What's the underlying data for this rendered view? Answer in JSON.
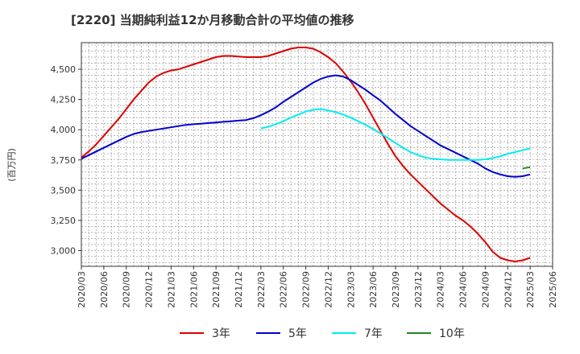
{
  "chart_data": {
    "type": "line",
    "title": "[2220]  当期純利益12か月移動合計の平均値の推移",
    "ylabel": "(百万円)",
    "xlabel": "",
    "ylim": [
      2870,
      4720
    ],
    "yticks": [
      3000,
      3250,
      3500,
      3750,
      4000,
      4250,
      4500
    ],
    "ytick_labels": [
      "3,000",
      "3,250",
      "3,500",
      "3,750",
      "4,000",
      "4,250",
      "4,500"
    ],
    "xlim": [
      "2020-03",
      "2025-06"
    ],
    "xtick_labels": [
      "2020/03",
      "2020/06",
      "2020/09",
      "2020/12",
      "2021/03",
      "2021/06",
      "2021/09",
      "2021/12",
      "2022/03",
      "2022/06",
      "2022/09",
      "2022/12",
      "2023/03",
      "2023/06",
      "2023/09",
      "2023/12",
      "2024/03",
      "2024/06",
      "2024/09",
      "2024/12",
      "2025/03",
      "2025/06"
    ],
    "grid": true,
    "legend_position": "bottom",
    "series": [
      {
        "name": "3年",
        "color": "#dd0000",
        "points": [
          [
            "2020-03",
            3770
          ],
          [
            "2020-04",
            3820
          ],
          [
            "2020-05",
            3880
          ],
          [
            "2020-06",
            3950
          ],
          [
            "2020-07",
            4020
          ],
          [
            "2020-08",
            4090
          ],
          [
            "2020-09",
            4170
          ],
          [
            "2020-10",
            4250
          ],
          [
            "2020-11",
            4320
          ],
          [
            "2020-12",
            4390
          ],
          [
            "2021-01",
            4440
          ],
          [
            "2021-02",
            4470
          ],
          [
            "2021-03",
            4490
          ],
          [
            "2021-04",
            4500
          ],
          [
            "2021-05",
            4520
          ],
          [
            "2021-06",
            4540
          ],
          [
            "2021-07",
            4560
          ],
          [
            "2021-08",
            4580
          ],
          [
            "2021-09",
            4600
          ],
          [
            "2021-10",
            4610
          ],
          [
            "2021-11",
            4610
          ],
          [
            "2021-12",
            4605
          ],
          [
            "2022-01",
            4600
          ],
          [
            "2022-02",
            4600
          ],
          [
            "2022-03",
            4600
          ],
          [
            "2022-04",
            4610
          ],
          [
            "2022-05",
            4630
          ],
          [
            "2022-06",
            4650
          ],
          [
            "2022-07",
            4670
          ],
          [
            "2022-08",
            4680
          ],
          [
            "2022-09",
            4680
          ],
          [
            "2022-10",
            4670
          ],
          [
            "2022-11",
            4640
          ],
          [
            "2022-12",
            4600
          ],
          [
            "2023-01",
            4550
          ],
          [
            "2023-02",
            4480
          ],
          [
            "2023-03",
            4400
          ],
          [
            "2023-04",
            4310
          ],
          [
            "2023-05",
            4210
          ],
          [
            "2023-06",
            4100
          ],
          [
            "2023-07",
            3990
          ],
          [
            "2023-08",
            3880
          ],
          [
            "2023-09",
            3780
          ],
          [
            "2023-10",
            3700
          ],
          [
            "2023-11",
            3630
          ],
          [
            "2023-12",
            3570
          ],
          [
            "2024-01",
            3510
          ],
          [
            "2024-02",
            3450
          ],
          [
            "2024-03",
            3390
          ],
          [
            "2024-04",
            3340
          ],
          [
            "2024-05",
            3290
          ],
          [
            "2024-06",
            3250
          ],
          [
            "2024-07",
            3200
          ],
          [
            "2024-08",
            3140
          ],
          [
            "2024-09",
            3070
          ],
          [
            "2024-10",
            2990
          ],
          [
            "2024-11",
            2940
          ],
          [
            "2024-12",
            2920
          ],
          [
            "2025-01",
            2910
          ],
          [
            "2025-02",
            2920
          ],
          [
            "2025-03",
            2940
          ]
        ]
      },
      {
        "name": "5年",
        "color": "#0000cc",
        "points": [
          [
            "2020-03",
            3760
          ],
          [
            "2020-04",
            3790
          ],
          [
            "2020-05",
            3820
          ],
          [
            "2020-06",
            3850
          ],
          [
            "2020-07",
            3880
          ],
          [
            "2020-08",
            3910
          ],
          [
            "2020-09",
            3940
          ],
          [
            "2020-10",
            3965
          ],
          [
            "2020-11",
            3980
          ],
          [
            "2020-12",
            3990
          ],
          [
            "2021-01",
            4000
          ],
          [
            "2021-02",
            4010
          ],
          [
            "2021-03",
            4020
          ],
          [
            "2021-04",
            4030
          ],
          [
            "2021-05",
            4040
          ],
          [
            "2021-06",
            4045
          ],
          [
            "2021-07",
            4050
          ],
          [
            "2021-08",
            4055
          ],
          [
            "2021-09",
            4060
          ],
          [
            "2021-10",
            4065
          ],
          [
            "2021-11",
            4070
          ],
          [
            "2021-12",
            4075
          ],
          [
            "2022-01",
            4080
          ],
          [
            "2022-02",
            4095
          ],
          [
            "2022-03",
            4120
          ],
          [
            "2022-04",
            4150
          ],
          [
            "2022-05",
            4185
          ],
          [
            "2022-06",
            4230
          ],
          [
            "2022-07",
            4270
          ],
          [
            "2022-08",
            4310
          ],
          [
            "2022-09",
            4350
          ],
          [
            "2022-10",
            4390
          ],
          [
            "2022-11",
            4420
          ],
          [
            "2022-12",
            4440
          ],
          [
            "2023-01",
            4450
          ],
          [
            "2023-02",
            4440
          ],
          [
            "2023-03",
            4410
          ],
          [
            "2023-04",
            4370
          ],
          [
            "2023-05",
            4330
          ],
          [
            "2023-06",
            4285
          ],
          [
            "2023-07",
            4240
          ],
          [
            "2023-08",
            4185
          ],
          [
            "2023-09",
            4130
          ],
          [
            "2023-10",
            4080
          ],
          [
            "2023-11",
            4030
          ],
          [
            "2023-12",
            3990
          ],
          [
            "2024-01",
            3950
          ],
          [
            "2024-02",
            3910
          ],
          [
            "2024-03",
            3870
          ],
          [
            "2024-04",
            3840
          ],
          [
            "2024-05",
            3810
          ],
          [
            "2024-06",
            3780
          ],
          [
            "2024-07",
            3750
          ],
          [
            "2024-08",
            3720
          ],
          [
            "2024-09",
            3680
          ],
          [
            "2024-10",
            3650
          ],
          [
            "2024-11",
            3630
          ],
          [
            "2024-12",
            3615
          ],
          [
            "2025-01",
            3610
          ],
          [
            "2025-02",
            3615
          ],
          [
            "2025-03",
            3630
          ]
        ]
      },
      {
        "name": "7年",
        "color": "#00eeee",
        "points": [
          [
            "2022-03",
            4010
          ],
          [
            "2022-04",
            4025
          ],
          [
            "2022-05",
            4045
          ],
          [
            "2022-06",
            4070
          ],
          [
            "2022-07",
            4100
          ],
          [
            "2022-08",
            4125
          ],
          [
            "2022-09",
            4150
          ],
          [
            "2022-10",
            4165
          ],
          [
            "2022-11",
            4170
          ],
          [
            "2022-12",
            4160
          ],
          [
            "2023-01",
            4145
          ],
          [
            "2023-02",
            4125
          ],
          [
            "2023-03",
            4100
          ],
          [
            "2023-04",
            4070
          ],
          [
            "2023-05",
            4040
          ],
          [
            "2023-06",
            4005
          ],
          [
            "2023-07",
            3970
          ],
          [
            "2023-08",
            3930
          ],
          [
            "2023-09",
            3890
          ],
          [
            "2023-10",
            3850
          ],
          [
            "2023-11",
            3815
          ],
          [
            "2023-12",
            3790
          ],
          [
            "2024-01",
            3770
          ],
          [
            "2024-02",
            3760
          ],
          [
            "2024-03",
            3755
          ],
          [
            "2024-04",
            3750
          ],
          [
            "2024-05",
            3750
          ],
          [
            "2024-06",
            3750
          ],
          [
            "2024-07",
            3750
          ],
          [
            "2024-08",
            3750
          ],
          [
            "2024-09",
            3755
          ],
          [
            "2024-10",
            3765
          ],
          [
            "2024-11",
            3780
          ],
          [
            "2024-12",
            3800
          ],
          [
            "2025-01",
            3815
          ],
          [
            "2025-02",
            3830
          ],
          [
            "2025-03",
            3845
          ]
        ]
      },
      {
        "name": "10年",
        "color": "#228822",
        "points": [
          [
            "2025-02",
            3680
          ],
          [
            "2025-03",
            3690
          ]
        ]
      }
    ]
  }
}
